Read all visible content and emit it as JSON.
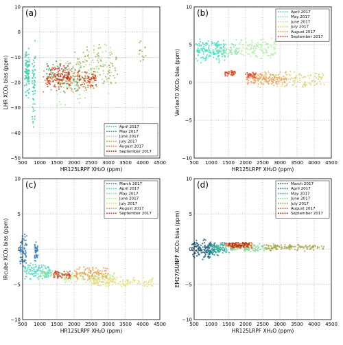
{
  "chart_data": [
    {
      "type": "scatter",
      "panel_label": "(a)",
      "xlabel": "HR125LRPF XH₂O (ppm)",
      "ylabel": "LHR XCO₂ bias (ppm)",
      "xlim": [
        500,
        4500
      ],
      "ylim": [
        -50,
        10
      ],
      "xticks": [
        "500",
        "1000",
        "1500",
        "2000",
        "2500",
        "3000",
        "3500",
        "4000",
        "4500"
      ],
      "yticks": [
        "−50",
        "−40",
        "−30",
        "−20",
        "−10",
        "0",
        "10"
      ],
      "grid": true,
      "legend_position": "bottom-right",
      "series": [
        {
          "name": "April 2017",
          "color": "#3fd0a8",
          "clusters": [
            [
              560,
              700,
              -28,
              -4,
              90
            ],
            [
              780,
              870,
              -40,
              -2,
              60
            ]
          ]
        },
        {
          "name": "May 2017",
          "color": "#22b08a",
          "clusters": [
            [
              1200,
              1600,
              -20,
              -10,
              20
            ],
            [
              1600,
              2200,
              -26,
              -12,
              30
            ]
          ]
        },
        {
          "name": "June 2017",
          "color": "#a8e59b",
          "clusters": [
            [
              1500,
              2400,
              -30,
              -8,
              70
            ],
            [
              2400,
              3100,
              -25,
              -3,
              60
            ]
          ]
        },
        {
          "name": "July 2017",
          "color": "#b3a85a",
          "clusters": [
            [
              2000,
              3300,
              -24,
              -3,
              80
            ],
            [
              3900,
              4100,
              -12,
              -2,
              15
            ]
          ]
        },
        {
          "name": "August 2017",
          "color": "#e07a40",
          "clusters": [
            [
              1100,
              2000,
              -25,
              -12,
              80
            ],
            [
              1800,
              2600,
              -24,
              -14,
              60
            ]
          ]
        },
        {
          "name": "September 2017",
          "color": "#c43214",
          "clusters": [
            [
              1200,
              1900,
              -23,
              -12,
              80
            ],
            [
              2100,
              2700,
              -22,
              -15,
              40
            ]
          ]
        }
      ]
    },
    {
      "type": "scatter",
      "panel_label": "(b)",
      "xlabel": "HR125LRPF XH₂O (ppm)",
      "ylabel": "Vertex70 XCO₂ bias (ppm)",
      "xlim": [
        500,
        4500
      ],
      "ylim": [
        -10,
        10
      ],
      "xticks": [
        "500",
        "1000",
        "1500",
        "2000",
        "2500",
        "3000",
        "3500",
        "4000",
        "4500"
      ],
      "yticks": [
        "−10",
        "−5",
        "0",
        "5",
        "10"
      ],
      "grid": true,
      "legend_position": "top-right",
      "series": [
        {
          "name": "April 2017",
          "color": "#3fe0c0",
          "clusters": [
            [
              550,
              1400,
              2.5,
              5.8,
              150
            ]
          ]
        },
        {
          "name": "May 2017",
          "color": "#90e0b0",
          "clusters": [
            [
              1100,
              1800,
              3.2,
              5.2,
              60
            ]
          ]
        },
        {
          "name": "June 2017",
          "color": "#b5eeaa",
          "clusters": [
            [
              1700,
              2900,
              3,
              6,
              130
            ]
          ]
        },
        {
          "name": "July 2017",
          "color": "#ddd27a",
          "clusters": [
            [
              2200,
              4300,
              -0.8,
              1.6,
              150
            ]
          ]
        },
        {
          "name": "August 2017",
          "color": "#f0a060",
          "clusters": [
            [
              2000,
              3200,
              -0.5,
              1.5,
              120
            ]
          ]
        },
        {
          "name": "September 2017",
          "color": "#e04a2a",
          "clusters": [
            [
              1400,
              1700,
              0.8,
              1.6,
              40
            ],
            [
              2000,
              2300,
              0.6,
              1.4,
              30
            ]
          ]
        }
      ]
    },
    {
      "type": "scatter",
      "panel_label": "(c)",
      "xlabel": "HR125LRPF XH₂O (ppm)",
      "ylabel": "IRcube XCO₂ bias (ppm)",
      "xlim": [
        500,
        4500
      ],
      "ylim": [
        -10,
        10
      ],
      "xticks": [
        "500",
        "1000",
        "1500",
        "2000",
        "2500",
        "3000",
        "3500",
        "4000",
        "4500"
      ],
      "yticks": [
        "−10",
        "−5",
        "0",
        "5",
        "10"
      ],
      "grid": true,
      "legend_position": "top-right",
      "series": [
        {
          "name": "March 2017",
          "color": "#2f7fc0",
          "clusters": [
            [
              420,
              620,
              -3,
              2.6,
              60
            ],
            [
              850,
              950,
              -2,
              1.5,
              40
            ]
          ]
        },
        {
          "name": "April 2017",
          "color": "#4fd8c0",
          "clusters": [
            [
              550,
              1300,
              -4.5,
              -1.8,
              120
            ]
          ]
        },
        {
          "name": "May 2017",
          "color": "#90e0a8",
          "clusters": [
            [
              1000,
              1800,
              -4.2,
              -3,
              60
            ]
          ]
        },
        {
          "name": "June 2017",
          "color": "#c0ec90",
          "clusters": [
            [
              1700,
              3200,
              -5,
              -3,
              120
            ]
          ]
        },
        {
          "name": "July 2017",
          "color": "#e6de70",
          "clusters": [
            [
              2500,
              4300,
              -5.5,
              -3.8,
              120
            ]
          ]
        },
        {
          "name": "August 2017",
          "color": "#f0a050",
          "clusters": [
            [
              2000,
              3000,
              -4.5,
              -2.5,
              90
            ]
          ]
        },
        {
          "name": "September 2017",
          "color": "#d94020",
          "clusters": [
            [
              1400,
              1900,
              -4.2,
              -3,
              50
            ]
          ]
        }
      ]
    },
    {
      "type": "scatter",
      "panel_label": "(d)",
      "xlabel": "HR125LRPF XH₂O (ppm)",
      "ylabel": "EM27/SUNPF XCO₂ bias (ppm)",
      "xlim": [
        500,
        4500
      ],
      "ylim": [
        -10,
        10
      ],
      "xticks": [
        "500",
        "1000",
        "1500",
        "2000",
        "2500",
        "3000",
        "3500",
        "4000",
        "4500"
      ],
      "yticks": [
        "−10",
        "−5",
        "0",
        "5",
        "10"
      ],
      "grid": true,
      "legend_position": "top-right",
      "series": [
        {
          "name": "March 2017",
          "color": "#1c5f80",
          "clusters": [
            [
              420,
              1000,
              -1.5,
              1.5,
              120
            ]
          ]
        },
        {
          "name": "April 2017",
          "color": "#1a8c8c",
          "clusters": [
            [
              900,
              1400,
              -1,
              1.2,
              80
            ]
          ]
        },
        {
          "name": "May 2017",
          "color": "#40c0a0",
          "clusters": [
            [
              1100,
              1600,
              -0.8,
              1,
              50
            ]
          ]
        },
        {
          "name": "June 2017",
          "color": "#80d890",
          "clusters": [
            [
              1600,
              2600,
              -0.5,
              0.8,
              80
            ]
          ]
        },
        {
          "name": "July 2017",
          "color": "#a5a84a",
          "clusters": [
            [
              2500,
              4300,
              -0.3,
              0.8,
              120
            ]
          ]
        },
        {
          "name": "August 2017",
          "color": "#e07030",
          "clusters": [
            [
              1400,
              2200,
              0,
              1,
              80
            ]
          ]
        },
        {
          "name": "September 2017",
          "color": "#b03010",
          "clusters": [
            [
              1500,
              2100,
              0.2,
              1,
              60
            ]
          ]
        }
      ]
    }
  ]
}
